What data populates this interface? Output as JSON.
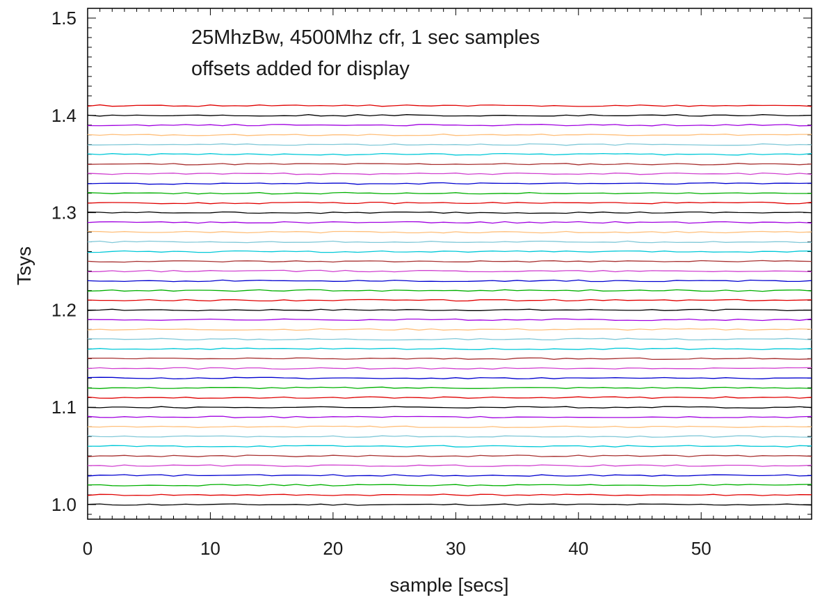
{
  "chart_data": {
    "type": "line",
    "xlabel": "sample [secs]",
    "ylabel": "Tsys",
    "xlim": [
      0,
      59
    ],
    "ylim": [
      0.985,
      1.51
    ],
    "xticks": [
      0,
      10,
      20,
      30,
      40,
      50
    ],
    "xtick_labels": [
      "0",
      "10",
      "20",
      "30",
      "40",
      "50"
    ],
    "yticks": [
      1.0,
      1.1,
      1.2,
      1.3,
      1.4,
      1.5
    ],
    "ytick_labels": [
      "1.0",
      "1.1",
      "1.2",
      "1.3",
      "1.4",
      "1.5"
    ],
    "annotations": [
      "25MhzBw, 4500Mhz cfr, 1 sec samples",
      "offsets added for display"
    ],
    "grid": false,
    "legend": "none",
    "line_colors": [
      "#000000",
      "#e00000",
      "#00b000",
      "#0000d0",
      "#d040d0",
      "#a83030",
      "#00c8d8",
      "#80c8d8",
      "#ffbf7a",
      "#a000e0"
    ],
    "series": [
      {
        "color": "#000000",
        "baseline": 1.0
      },
      {
        "color": "#e00000",
        "baseline": 1.01
      },
      {
        "color": "#00b000",
        "baseline": 1.02
      },
      {
        "color": "#0000d0",
        "baseline": 1.03
      },
      {
        "color": "#d040d0",
        "baseline": 1.04
      },
      {
        "color": "#a83030",
        "baseline": 1.05
      },
      {
        "color": "#00c8d8",
        "baseline": 1.06
      },
      {
        "color": "#80c8d8",
        "baseline": 1.07
      },
      {
        "color": "#ffbf7a",
        "baseline": 1.08
      },
      {
        "color": "#a000e0",
        "baseline": 1.09
      },
      {
        "color": "#000000",
        "baseline": 1.1
      },
      {
        "color": "#e00000",
        "baseline": 1.11
      },
      {
        "color": "#00b000",
        "baseline": 1.12
      },
      {
        "color": "#0000d0",
        "baseline": 1.13
      },
      {
        "color": "#d040d0",
        "baseline": 1.14
      },
      {
        "color": "#a83030",
        "baseline": 1.15
      },
      {
        "color": "#00c8d8",
        "baseline": 1.16
      },
      {
        "color": "#80c8d8",
        "baseline": 1.17
      },
      {
        "color": "#ffbf7a",
        "baseline": 1.18
      },
      {
        "color": "#a000e0",
        "baseline": 1.19
      },
      {
        "color": "#000000",
        "baseline": 1.2
      },
      {
        "color": "#e00000",
        "baseline": 1.21
      },
      {
        "color": "#00b000",
        "baseline": 1.22
      },
      {
        "color": "#0000d0",
        "baseline": 1.23
      },
      {
        "color": "#d040d0",
        "baseline": 1.24
      },
      {
        "color": "#a83030",
        "baseline": 1.25
      },
      {
        "color": "#00c8d8",
        "baseline": 1.26
      },
      {
        "color": "#80c8d8",
        "baseline": 1.27
      },
      {
        "color": "#ffbf7a",
        "baseline": 1.28
      },
      {
        "color": "#a000e0",
        "baseline": 1.29
      },
      {
        "color": "#000000",
        "baseline": 1.3
      },
      {
        "color": "#e00000",
        "baseline": 1.31
      },
      {
        "color": "#00b000",
        "baseline": 1.32
      },
      {
        "color": "#0000d0",
        "baseline": 1.33
      },
      {
        "color": "#d040d0",
        "baseline": 1.34
      },
      {
        "color": "#a83030",
        "baseline": 1.35
      },
      {
        "color": "#00c8d8",
        "baseline": 1.36
      },
      {
        "color": "#80c8d8",
        "baseline": 1.37
      },
      {
        "color": "#ffbf7a",
        "baseline": 1.38
      },
      {
        "color": "#a000e0",
        "baseline": 1.39
      },
      {
        "color": "#000000",
        "baseline": 1.4
      },
      {
        "color": "#e00000",
        "baseline": 1.41
      }
    ]
  }
}
